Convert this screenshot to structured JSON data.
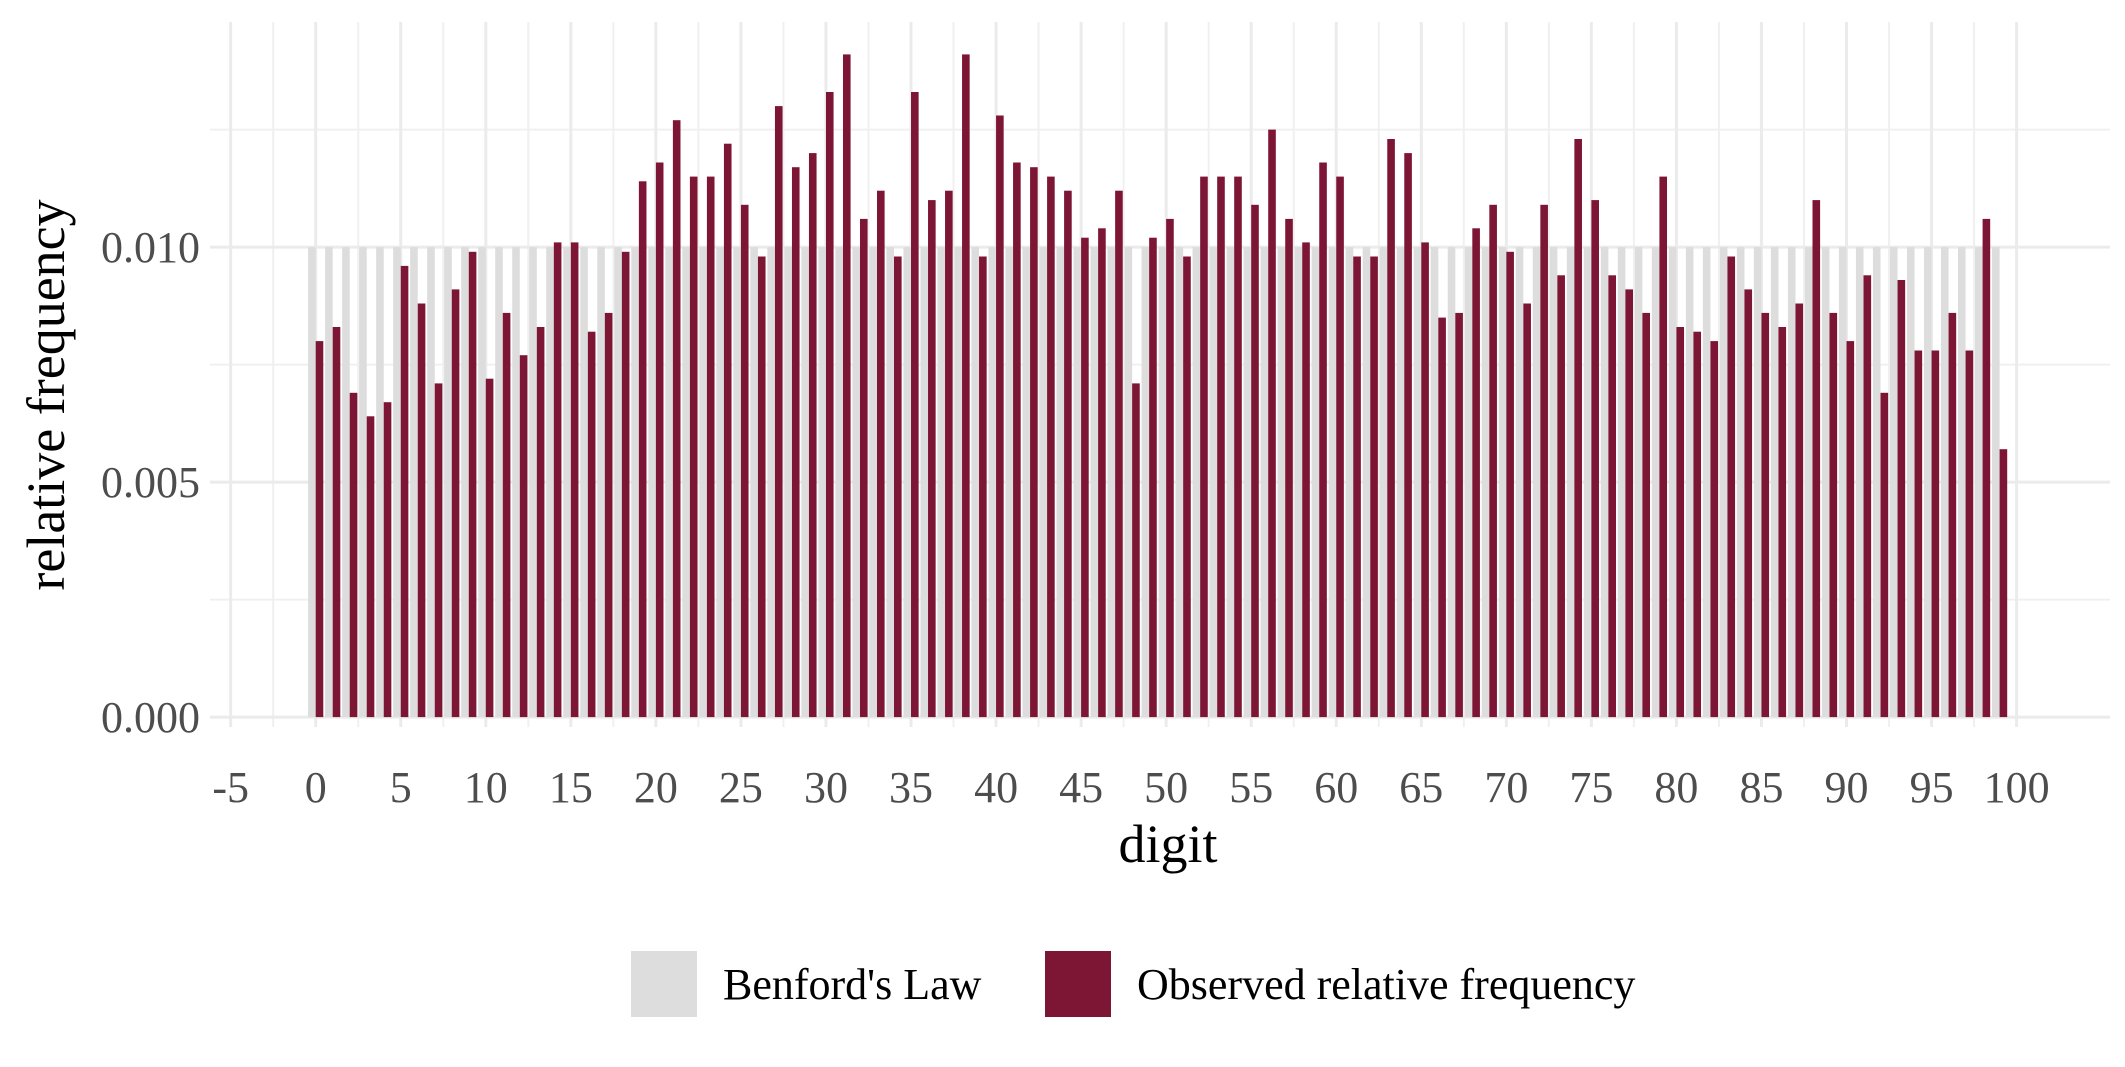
{
  "chart_data": {
    "type": "bar",
    "title": "",
    "xlabel": "digit",
    "ylabel": "relative frequency",
    "xlim": [
      -5,
      100
    ],
    "ylim": [
      0,
      0.0141
    ],
    "x_ticks": [
      -5,
      0,
      5,
      10,
      15,
      20,
      25,
      30,
      35,
      40,
      45,
      50,
      55,
      60,
      65,
      70,
      75,
      80,
      85,
      90,
      95,
      100
    ],
    "x_tick_labels": [
      "-5",
      "0",
      "5",
      "10",
      "15",
      "20",
      "25",
      "30",
      "35",
      "40",
      "45",
      "50",
      "55",
      "60",
      "65",
      "70",
      "75",
      "80",
      "85",
      "90",
      "95",
      "100"
    ],
    "y_ticks": [
      0,
      0.005,
      0.01
    ],
    "y_tick_labels": [
      "0.000",
      "0.005",
      "0.010"
    ],
    "grid": true,
    "legend_position": "bottom",
    "x": [
      0,
      1,
      2,
      3,
      4,
      5,
      6,
      7,
      8,
      9,
      10,
      11,
      12,
      13,
      14,
      15,
      16,
      17,
      18,
      19,
      20,
      21,
      22,
      23,
      24,
      25,
      26,
      27,
      28,
      29,
      30,
      31,
      32,
      33,
      34,
      35,
      36,
      37,
      38,
      39,
      40,
      41,
      42,
      43,
      44,
      45,
      46,
      47,
      48,
      49,
      50,
      51,
      52,
      53,
      54,
      55,
      56,
      57,
      58,
      59,
      60,
      61,
      62,
      63,
      64,
      65,
      66,
      67,
      68,
      69,
      70,
      71,
      72,
      73,
      74,
      75,
      76,
      77,
      78,
      79,
      80,
      81,
      82,
      83,
      84,
      85,
      86,
      87,
      88,
      89,
      90,
      91,
      92,
      93,
      94,
      95,
      96,
      97,
      98,
      99
    ],
    "series": [
      {
        "name": "Benford's Law",
        "color": "#dddddd",
        "values": [
          0.01,
          0.01,
          0.01,
          0.01,
          0.01,
          0.01,
          0.01,
          0.01,
          0.01,
          0.01,
          0.01,
          0.01,
          0.01,
          0.01,
          0.01,
          0.01,
          0.01,
          0.01,
          0.01,
          0.01,
          0.01,
          0.01,
          0.01,
          0.01,
          0.01,
          0.01,
          0.01,
          0.01,
          0.01,
          0.01,
          0.01,
          0.01,
          0.01,
          0.01,
          0.01,
          0.01,
          0.01,
          0.01,
          0.01,
          0.01,
          0.01,
          0.01,
          0.01,
          0.01,
          0.01,
          0.01,
          0.01,
          0.01,
          0.01,
          0.01,
          0.01,
          0.01,
          0.01,
          0.01,
          0.01,
          0.01,
          0.01,
          0.01,
          0.01,
          0.01,
          0.01,
          0.01,
          0.01,
          0.01,
          0.01,
          0.01,
          0.01,
          0.01,
          0.01,
          0.01,
          0.01,
          0.01,
          0.01,
          0.01,
          0.01,
          0.01,
          0.01,
          0.01,
          0.01,
          0.01,
          0.01,
          0.01,
          0.01,
          0.01,
          0.01,
          0.01,
          0.01,
          0.01,
          0.01,
          0.01,
          0.01,
          0.01,
          0.01,
          0.01,
          0.01,
          0.01,
          0.01,
          0.01,
          0.01,
          0.01
        ]
      },
      {
        "name": "Observed relative frequency",
        "color": "#7d1535",
        "values": [
          0.008,
          0.0083,
          0.0069,
          0.0064,
          0.0067,
          0.0096,
          0.0088,
          0.0071,
          0.0091,
          0.0099,
          0.0072,
          0.0086,
          0.0077,
          0.0083,
          0.0101,
          0.0101,
          0.0082,
          0.0086,
          0.0099,
          0.0114,
          0.0118,
          0.0127,
          0.0115,
          0.0115,
          0.0122,
          0.0109,
          0.0098,
          0.013,
          0.0117,
          0.012,
          0.0133,
          0.0141,
          0.0106,
          0.0112,
          0.0098,
          0.0133,
          0.011,
          0.0112,
          0.0141,
          0.0098,
          0.0128,
          0.0118,
          0.0117,
          0.0115,
          0.0112,
          0.0102,
          0.0104,
          0.0112,
          0.0071,
          0.0102,
          0.0106,
          0.0098,
          0.0115,
          0.0115,
          0.0115,
          0.0109,
          0.0125,
          0.0106,
          0.0101,
          0.0118,
          0.0115,
          0.0098,
          0.0098,
          0.0123,
          0.012,
          0.0101,
          0.0085,
          0.0086,
          0.0104,
          0.0109,
          0.0099,
          0.0088,
          0.0109,
          0.0094,
          0.0123,
          0.011,
          0.0094,
          0.0091,
          0.0086,
          0.0115,
          0.0083,
          0.0082,
          0.008,
          0.0098,
          0.0091,
          0.0086,
          0.0083,
          0.0088,
          0.011,
          0.0086,
          0.008,
          0.0094,
          0.0069,
          0.0093,
          0.0078,
          0.0078,
          0.0086,
          0.0078,
          0.0106,
          0.0057
        ]
      }
    ]
  }
}
